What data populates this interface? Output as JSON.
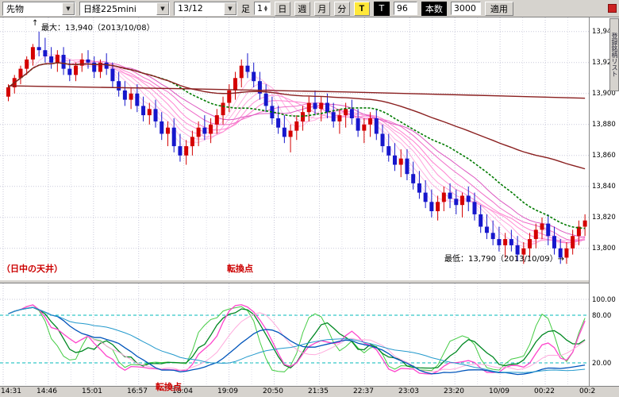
{
  "toolbar": {
    "instrument_type": "先物",
    "instrument": "日経225mini",
    "contract_month": "13/12",
    "bar_label": "足",
    "bar_value": "1",
    "period_buttons": [
      "日",
      "週",
      "月",
      "分"
    ],
    "t_yellow": "T",
    "t_black": "T",
    "bars_visible": "96",
    "bars_label": "本数",
    "bars_total": "3000",
    "apply_label": "適用"
  },
  "side_tab": "登録銘柄リスト",
  "annotations": {
    "max_arrow": "↑",
    "max_label": "最大：13,940（2013/10/08）",
    "min_label": "最低：13,790（2013/10/09）→",
    "ceiling_label": "（日中の天井）",
    "turn_top": "転換点",
    "turn_bottom": "転換点"
  },
  "price_axis": [
    "13,940",
    "13,920",
    "13,900",
    "13,880",
    "13,860",
    "13,840",
    "13,820",
    "13,800"
  ],
  "osc_axis": [
    {
      "label": "100.00",
      "value": 100
    },
    {
      "label": "80.00",
      "value": 80
    },
    {
      "label": "20.00",
      "value": 20
    }
  ],
  "time_axis": [
    "14:31",
    "14:46",
    "15:01",
    "16:57",
    "18:04",
    "19:09",
    "20:50",
    "21:35",
    "22:37",
    "23:03",
    "23:20",
    "10/09",
    "00:22",
    "00:2"
  ],
  "chart_data": {
    "type": "candlestick",
    "symbol": "日経225mini",
    "contract": "13/12",
    "session_high": 13940,
    "session_high_date": "2013/10/08",
    "session_low": 13790,
    "session_low_date": "2013/10/09",
    "price_gridlines": [
      13940,
      13920,
      13900,
      13880,
      13860,
      13840,
      13820,
      13800
    ],
    "candles": [
      [
        13898,
        13906,
        13895,
        13904
      ],
      [
        13904,
        13912,
        13900,
        13910
      ],
      [
        13910,
        13918,
        13906,
        13916
      ],
      [
        13916,
        13924,
        13912,
        13922
      ],
      [
        13922,
        13932,
        13918,
        13930
      ],
      [
        13930,
        13940,
        13924,
        13928
      ],
      [
        13928,
        13936,
        13920,
        13924
      ],
      [
        13924,
        13930,
        13916,
        13920
      ],
      [
        13920,
        13928,
        13914,
        13925
      ],
      [
        13925,
        13930,
        13912,
        13916
      ],
      [
        13916,
        13922,
        13908,
        13912
      ],
      [
        13912,
        13920,
        13908,
        13918
      ],
      [
        13918,
        13926,
        13914,
        13922
      ],
      [
        13922,
        13928,
        13916,
        13920
      ],
      [
        13920,
        13924,
        13910,
        13914
      ],
      [
        13914,
        13922,
        13910,
        13920
      ],
      [
        13920,
        13926,
        13912,
        13916
      ],
      [
        13916,
        13920,
        13904,
        13908
      ],
      [
        13908,
        13914,
        13898,
        13902
      ],
      [
        13902,
        13908,
        13892,
        13896
      ],
      [
        13896,
        13904,
        13890,
        13900
      ],
      [
        13900,
        13906,
        13888,
        13892
      ],
      [
        13892,
        13898,
        13882,
        13886
      ],
      [
        13886,
        13894,
        13880,
        13890
      ],
      [
        13890,
        13896,
        13878,
        13882
      ],
      [
        13882,
        13888,
        13870,
        13874
      ],
      [
        13874,
        13882,
        13866,
        13878
      ],
      [
        13878,
        13884,
        13862,
        13866
      ],
      [
        13866,
        13874,
        13856,
        13860
      ],
      [
        13860,
        13870,
        13854,
        13866
      ],
      [
        13866,
        13876,
        13860,
        13872
      ],
      [
        13872,
        13882,
        13866,
        13878
      ],
      [
        13878,
        13886,
        13870,
        13874
      ],
      [
        13874,
        13884,
        13868,
        13880
      ],
      [
        13880,
        13890,
        13874,
        13886
      ],
      [
        13886,
        13898,
        13880,
        13894
      ],
      [
        13894,
        13906,
        13888,
        13902
      ],
      [
        13902,
        13914,
        13896,
        13910
      ],
      [
        13910,
        13922,
        13904,
        13918
      ],
      [
        13918,
        13926,
        13910,
        13914
      ],
      [
        13914,
        13920,
        13904,
        13908
      ],
      [
        13908,
        13914,
        13896,
        13900
      ],
      [
        13900,
        13906,
        13888,
        13892
      ],
      [
        13892,
        13898,
        13880,
        13884
      ],
      [
        13884,
        13892,
        13874,
        13878
      ],
      [
        13878,
        13886,
        13868,
        13872
      ],
      [
        13872,
        13880,
        13862,
        13876
      ],
      [
        13876,
        13886,
        13870,
        13882
      ],
      [
        13882,
        13892,
        13876,
        13888
      ],
      [
        13888,
        13898,
        13882,
        13894
      ],
      [
        13894,
        13902,
        13886,
        13890
      ],
      [
        13890,
        13898,
        13882,
        13894
      ],
      [
        13894,
        13900,
        13884,
        13888
      ],
      [
        13888,
        13894,
        13878,
        13882
      ],
      [
        13882,
        13890,
        13874,
        13886
      ],
      [
        13886,
        13894,
        13878,
        13890
      ],
      [
        13890,
        13896,
        13880,
        13884
      ],
      [
        13884,
        13890,
        13872,
        13876
      ],
      [
        13876,
        13884,
        13868,
        13880
      ],
      [
        13880,
        13888,
        13872,
        13884
      ],
      [
        13884,
        13890,
        13870,
        13874
      ],
      [
        13874,
        13880,
        13862,
        13866
      ],
      [
        13866,
        13874,
        13856,
        13860
      ],
      [
        13860,
        13868,
        13850,
        13854
      ],
      [
        13854,
        13864,
        13846,
        13858
      ],
      [
        13858,
        13864,
        13844,
        13848
      ],
      [
        13848,
        13856,
        13838,
        13842
      ],
      [
        13842,
        13850,
        13832,
        13836
      ],
      [
        13836,
        13844,
        13826,
        13830
      ],
      [
        13830,
        13838,
        13820,
        13824
      ],
      [
        13824,
        13834,
        13818,
        13830
      ],
      [
        13830,
        13840,
        13824,
        13836
      ],
      [
        13836,
        13842,
        13826,
        13832
      ],
      [
        13832,
        13838,
        13822,
        13828
      ],
      [
        13828,
        13836,
        13820,
        13834
      ],
      [
        13834,
        13840,
        13824,
        13830
      ],
      [
        13830,
        13836,
        13818,
        13822
      ],
      [
        13822,
        13828,
        13810,
        13814
      ],
      [
        13814,
        13822,
        13806,
        13810
      ],
      [
        13810,
        13818,
        13802,
        13806
      ],
      [
        13806,
        13814,
        13798,
        13802
      ],
      [
        13802,
        13810,
        13794,
        13806
      ],
      [
        13806,
        13812,
        13798,
        13802
      ],
      [
        13802,
        13808,
        13792,
        13796
      ],
      [
        13796,
        13804,
        13790,
        13800
      ],
      [
        13800,
        13810,
        13794,
        13806
      ],
      [
        13806,
        13816,
        13800,
        13812
      ],
      [
        13812,
        13820,
        13806,
        13816
      ],
      [
        13816,
        13822,
        13802,
        13808
      ],
      [
        13808,
        13814,
        13796,
        13800
      ],
      [
        13800,
        13806,
        13790,
        13794
      ],
      [
        13794,
        13804,
        13790,
        13800
      ],
      [
        13800,
        13812,
        13796,
        13808
      ],
      [
        13808,
        13818,
        13802,
        13814
      ],
      [
        13814,
        13822,
        13808,
        13818
      ]
    ],
    "overlays": {
      "fan_periods": [
        3,
        5,
        7,
        9,
        11,
        13,
        16,
        19
      ],
      "fan_colors": [
        "#ffd2ee",
        "#ffc2e8",
        "#ffb2e2",
        "#ffa2dc",
        "#ff92d6",
        "#ff80d0",
        "#f06cc8",
        "#dc58c0"
      ],
      "dotted_ma": {
        "period": 25,
        "color": "#007a00"
      },
      "declining_ma": {
        "period": 60,
        "color": "#8a1f1f"
      },
      "long_trend": {
        "color": "#8a1f1f",
        "points": [
          [
            0,
            13905
          ],
          [
            30,
            13903
          ],
          [
            55,
            13901
          ],
          [
            75,
            13899
          ],
          [
            94,
            13897
          ]
        ]
      }
    },
    "oscillator": {
      "type": "stochastic-style turning-point oscillator",
      "range": [
        0,
        100
      ],
      "gridlines": [
        100,
        80,
        20
      ],
      "lines": [
        {
          "period": 5,
          "smooth": 3,
          "color": "#44cc44",
          "width": 1
        },
        {
          "period": 5,
          "smooth": 6,
          "color": "#008822",
          "width": 1.3
        },
        {
          "period": 13,
          "smooth": 3,
          "color": "#ff44cc",
          "width": 1.3
        },
        {
          "period": 13,
          "smooth": 8,
          "color": "#ffaadd",
          "width": 1
        },
        {
          "period": 34,
          "smooth": 8,
          "color": "#0055bb",
          "width": 1.3
        },
        {
          "period": 34,
          "smooth": 20,
          "color": "#2299cc",
          "width": 1
        }
      ]
    }
  }
}
